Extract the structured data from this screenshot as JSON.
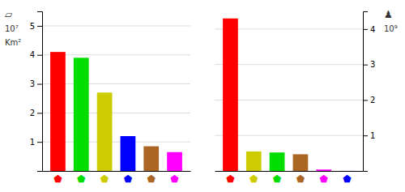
{
  "chart_data": [
    {
      "type": "bar",
      "categories": [
        "⬟",
        "⬟",
        "⬟",
        "⬟",
        "⬟",
        "⬟"
      ],
      "values": [
        4.1,
        3.9,
        2.7,
        1.2,
        0.85,
        0.65
      ],
      "colors": [
        "#ff0000",
        "#00dd00",
        "#cccc00",
        "#0000ff",
        "#aa6622",
        "#ff00ff"
      ],
      "ylim": [
        0,
        5.5
      ],
      "yticks": [
        1,
        2,
        3,
        4,
        5
      ],
      "grid": true,
      "annotations": [
        "▱",
        "10⁷",
        "Km²"
      ]
    },
    {
      "type": "bar",
      "categories": [
        "⬟",
        "⬟",
        "⬟",
        "⬟",
        "⬟",
        "⬟"
      ],
      "values": [
        4.3,
        0.55,
        0.52,
        0.47,
        0.04,
        0.002
      ],
      "colors": [
        "#ff0000",
        "#cccc00",
        "#00dd00",
        "#aa6622",
        "#ff00ff",
        "#0000ff"
      ],
      "ylim": [
        0,
        4.5
      ],
      "yticks": [
        1,
        2,
        3,
        4
      ],
      "grid": true,
      "annotations": [
        "♟",
        "10⁹"
      ]
    }
  ]
}
